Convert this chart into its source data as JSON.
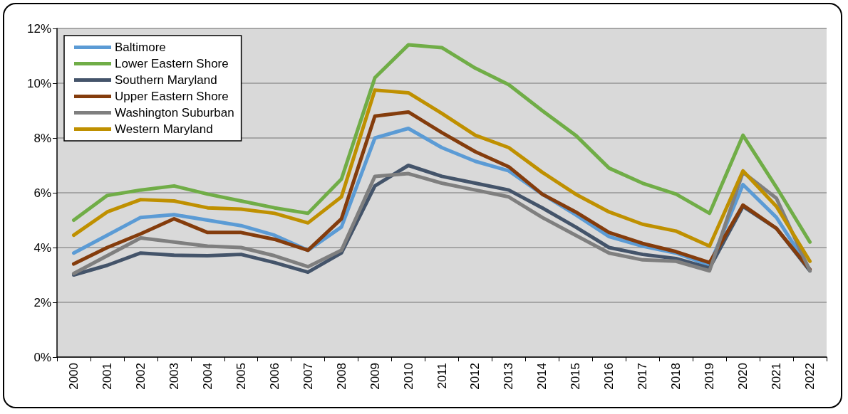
{
  "chart_data": {
    "type": "line",
    "categories": [
      "2000",
      "2001",
      "2002",
      "2003",
      "2004",
      "2005",
      "2006",
      "2007",
      "2008",
      "2009",
      "2010",
      "2011",
      "2012",
      "2013",
      "2014",
      "2015",
      "2016",
      "2017",
      "2018",
      "2019",
      "2020",
      "2021",
      "2022"
    ],
    "series": [
      {
        "name": "Baltimore",
        "color": "#5b9bd5",
        "values": [
          3.8,
          4.45,
          5.1,
          5.2,
          5.0,
          4.8,
          4.45,
          3.9,
          4.75,
          8.0,
          8.35,
          7.65,
          7.15,
          6.8,
          5.95,
          5.2,
          4.4,
          4.05,
          3.8,
          3.35,
          6.3,
          5.1,
          3.2
        ]
      },
      {
        "name": "Lower Eastern Shore",
        "color": "#70ad47",
        "values": [
          5.0,
          5.9,
          6.1,
          6.25,
          5.95,
          5.7,
          5.45,
          5.25,
          6.5,
          10.2,
          11.4,
          11.3,
          10.55,
          9.95,
          9.0,
          8.1,
          6.9,
          6.35,
          5.95,
          5.25,
          8.1,
          6.2,
          4.2
        ]
      },
      {
        "name": "Southern Maryland",
        "color": "#44546a",
        "values": [
          3.0,
          3.35,
          3.8,
          3.72,
          3.7,
          3.75,
          3.45,
          3.1,
          3.8,
          6.25,
          7.0,
          6.6,
          6.35,
          6.1,
          5.45,
          4.75,
          4.0,
          3.75,
          3.6,
          3.25,
          5.5,
          4.7,
          3.15
        ]
      },
      {
        "name": "Upper Eastern Shore",
        "color": "#843c0c",
        "values": [
          3.4,
          4.0,
          4.5,
          5.05,
          4.55,
          4.55,
          4.3,
          3.9,
          5.05,
          8.8,
          8.95,
          8.2,
          7.5,
          6.95,
          5.95,
          5.3,
          4.55,
          4.15,
          3.85,
          3.45,
          5.55,
          4.7,
          3.2
        ]
      },
      {
        "name": "Washington Suburban",
        "color": "#7f7f7f",
        "values": [
          3.05,
          3.7,
          4.35,
          4.2,
          4.05,
          4.0,
          3.7,
          3.3,
          3.9,
          6.6,
          6.7,
          6.35,
          6.1,
          5.85,
          5.1,
          4.45,
          3.8,
          3.55,
          3.5,
          3.15,
          6.75,
          5.8,
          3.15
        ]
      },
      {
        "name": "Western Maryland",
        "color": "#bf9000",
        "values": [
          4.45,
          5.3,
          5.75,
          5.7,
          5.45,
          5.4,
          5.25,
          4.9,
          5.85,
          9.75,
          9.65,
          8.9,
          8.1,
          7.65,
          6.75,
          5.95,
          5.3,
          4.85,
          4.6,
          4.05,
          6.8,
          5.5,
          3.5
        ]
      }
    ],
    "ylim": [
      0,
      12
    ],
    "yticks": [
      {
        "value": 0,
        "label": "0%"
      },
      {
        "value": 2,
        "label": "2%"
      },
      {
        "value": 4,
        "label": "4%"
      },
      {
        "value": 6,
        "label": "6%"
      },
      {
        "value": 8,
        "label": "8%"
      },
      {
        "value": 10,
        "label": "10%"
      },
      {
        "value": 12,
        "label": "12%"
      }
    ],
    "grid": "y",
    "legend": "top left",
    "marker": "none",
    "line_style": "solid"
  }
}
